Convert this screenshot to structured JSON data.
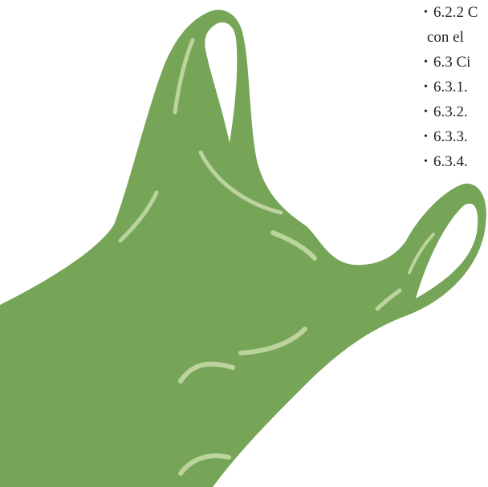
{
  "toc": {
    "items": [
      "6.2.2 C",
      "con el",
      "6.3 Ci",
      "6.3.1.",
      "6.3.2.",
      "6.3.3.",
      "6.3.4."
    ]
  }
}
